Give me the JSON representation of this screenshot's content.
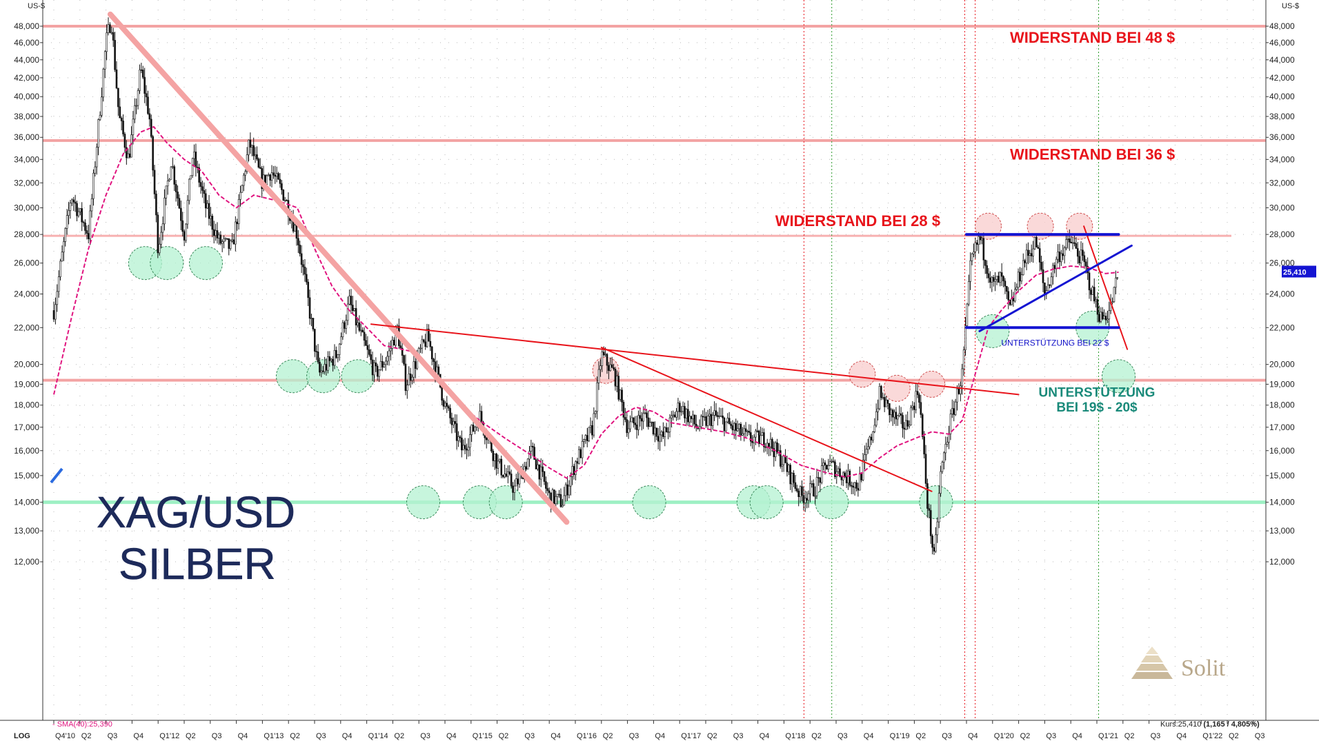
{
  "chart_data": {
    "type": "line",
    "y_unit": "US-$",
    "scale": "LOG",
    "ylim": [
      11500,
      50000
    ],
    "y_ticks": [
      12000,
      13000,
      14000,
      15000,
      16000,
      17000,
      18000,
      19000,
      20000,
      22000,
      24000,
      26000,
      28000,
      30000,
      32000,
      34000,
      36000,
      38000,
      40000,
      42000,
      44000,
      46000,
      48000
    ],
    "y_tick_labels": [
      "12,000",
      "13,000",
      "14,000",
      "15,000",
      "16,000",
      "17,000",
      "18,000",
      "19,000",
      "20,000",
      "22,000",
      "24,000",
      "26,000",
      "28,000",
      "30,000",
      "32,000",
      "34,000",
      "36,000",
      "38,000",
      "40,000",
      "42,000",
      "44,000",
      "46,000",
      "48,000"
    ],
    "x_tick_labels": [
      "Q4'10",
      "Q2",
      "Q3",
      "Q4",
      "Q1'12",
      "Q2",
      "Q3",
      "Q4",
      "Q1'13",
      "Q2",
      "Q3",
      "Q4",
      "Q1'14",
      "Q2",
      "Q3",
      "Q4",
      "Q1'15",
      "Q2",
      "Q3",
      "Q4",
      "Q1'16",
      "Q2",
      "Q3",
      "Q4",
      "Q1'17",
      "Q2",
      "Q3",
      "Q4",
      "Q1'18",
      "Q2",
      "Q3",
      "Q4",
      "Q1'19",
      "Q2",
      "Q3",
      "Q4",
      "Q1'20",
      "Q2",
      "Q3",
      "Q4",
      "Q1'21",
      "Q2",
      "Q3",
      "Q4",
      "Q1'22",
      "Q2",
      "Q3"
    ],
    "series": [
      {
        "name": "",
        "style": "candlestick",
        "color": "#111111",
        "anchors": [
          [
            0,
            23000
          ],
          [
            2,
            31000
          ],
          [
            4,
            28000
          ],
          [
            6,
            46000
          ],
          [
            6.6,
            49000
          ],
          [
            7.5,
            38000
          ],
          [
            8.6,
            34000
          ],
          [
            10,
            43000
          ],
          [
            11,
            38000
          ],
          [
            12,
            27000
          ],
          [
            13.5,
            34000
          ],
          [
            15,
            28000
          ],
          [
            16,
            34500
          ],
          [
            17.5,
            30000
          ],
          [
            19,
            27500
          ],
          [
            20.5,
            27000
          ],
          [
            22.5,
            35500
          ],
          [
            24,
            32000
          ],
          [
            25,
            33000
          ],
          [
            26.5,
            31000
          ],
          [
            28,
            28000
          ],
          [
            29,
            24500
          ],
          [
            30.5,
            19500
          ],
          [
            32.5,
            20500
          ],
          [
            34,
            23500
          ],
          [
            35,
            22000
          ],
          [
            37,
            19500
          ],
          [
            38.5,
            20500
          ],
          [
            39.5,
            22000
          ],
          [
            40.5,
            19000
          ],
          [
            42,
            20500
          ],
          [
            43,
            21500
          ],
          [
            45,
            18000
          ],
          [
            47,
            16000
          ],
          [
            49,
            17500
          ],
          [
            51,
            15500
          ],
          [
            53,
            14500
          ],
          [
            55,
            16000
          ],
          [
            57,
            14200
          ],
          [
            58.5,
            14000
          ],
          [
            60,
            15500
          ],
          [
            62,
            17000
          ],
          [
            63,
            20500
          ],
          [
            64.5,
            19500
          ],
          [
            66,
            17000
          ],
          [
            68,
            17500
          ],
          [
            70,
            16500
          ],
          [
            72,
            18000
          ],
          [
            74,
            17000
          ],
          [
            76,
            17500
          ],
          [
            78,
            17000
          ],
          [
            80,
            16500
          ],
          [
            82,
            16500
          ],
          [
            84,
            15500
          ],
          [
            86,
            14200
          ],
          [
            87.5,
            14500
          ],
          [
            89,
            15500
          ],
          [
            91,
            15000
          ],
          [
            92.5,
            14600
          ],
          [
            94,
            16500
          ],
          [
            95,
            18500
          ],
          [
            96.5,
            17500
          ],
          [
            98,
            17000
          ],
          [
            99.5,
            18800
          ],
          [
            100.5,
            14000
          ],
          [
            101.3,
            12000
          ],
          [
            102,
            15000
          ],
          [
            103,
            17000
          ],
          [
            104.5,
            19500
          ],
          [
            105.5,
            26000
          ],
          [
            106.5,
            27800
          ],
          [
            108,
            24500
          ],
          [
            109,
            25000
          ],
          [
            110,
            23000
          ],
          [
            111.5,
            26000
          ],
          [
            113,
            27500
          ],
          [
            114,
            24000
          ],
          [
            115.5,
            26500
          ],
          [
            117,
            27500
          ],
          [
            118.5,
            26000
          ],
          [
            119.5,
            24000
          ],
          [
            120.5,
            22500
          ],
          [
            121.5,
            23000
          ],
          [
            122.5,
            25410
          ]
        ]
      },
      {
        "name": "SMA(40):25,390",
        "style": "dashed",
        "color": "#e0147f",
        "points": [
          [
            0,
            18500
          ],
          [
            2,
            22500
          ],
          [
            4,
            27000
          ],
          [
            6,
            31000
          ],
          [
            8,
            34500
          ],
          [
            10,
            36500
          ],
          [
            11.5,
            37000
          ],
          [
            13,
            35500
          ],
          [
            15,
            34000
          ],
          [
            17,
            33000
          ],
          [
            19,
            31000
          ],
          [
            21,
            30000
          ],
          [
            23,
            31000
          ],
          [
            26,
            30500
          ],
          [
            28,
            30000
          ],
          [
            30,
            27000
          ],
          [
            32,
            24500
          ],
          [
            34,
            23000
          ],
          [
            36,
            22000
          ],
          [
            38,
            21000
          ],
          [
            41,
            20700
          ],
          [
            43,
            20000
          ],
          [
            46,
            18300
          ],
          [
            49,
            17300
          ],
          [
            52,
            16500
          ],
          [
            55,
            15800
          ],
          [
            57,
            15300
          ],
          [
            59,
            14900
          ],
          [
            61,
            15400
          ],
          [
            63,
            16700
          ],
          [
            65,
            17500
          ],
          [
            67,
            17900
          ],
          [
            69,
            17700
          ],
          [
            71,
            17200
          ],
          [
            74,
            17000
          ],
          [
            77,
            16800
          ],
          [
            80,
            16500
          ],
          [
            83,
            16000
          ],
          [
            86,
            15400
          ],
          [
            89,
            15100
          ],
          [
            91,
            14950
          ],
          [
            93,
            15100
          ],
          [
            95,
            15700
          ],
          [
            97,
            16200
          ],
          [
            99,
            16500
          ],
          [
            101,
            16800
          ],
          [
            103,
            16700
          ],
          [
            104.5,
            17300
          ],
          [
            106,
            19500
          ],
          [
            107.5,
            22000
          ],
          [
            109,
            23000
          ],
          [
            111,
            24200
          ],
          [
            113,
            25200
          ],
          [
            115,
            25600
          ],
          [
            117,
            25800
          ],
          [
            119,
            25700
          ],
          [
            121,
            25300
          ],
          [
            122.5,
            25390
          ]
        ]
      }
    ],
    "horizontal_levels": [
      {
        "value": 48000,
        "color": "#f3a3a3",
        "width": 4
      },
      {
        "value": 35700,
        "color": "#f3a3a3",
        "width": 4
      },
      {
        "value": 27900,
        "color": "#f7b0b0",
        "width": 3
      },
      {
        "value": 19200,
        "color": "#f3a3a3",
        "width": 4
      },
      {
        "value": 14000,
        "color": "#9ef0c4",
        "width": 5
      }
    ],
    "trendlines": [
      {
        "from": [
          6.5,
          49500
        ],
        "to": [
          59,
          13300
        ],
        "color": "#f4a3a3",
        "width": 8
      },
      {
        "from": [
          36.5,
          22200
        ],
        "to": [
          104.5,
          18800
        ],
        "color": "#e8141b",
        "width": 2
      },
      {
        "from": [
          104.5,
          18800
        ],
        "to": [
          111,
          18500
        ],
        "color": "#e8141b",
        "width": 2
      },
      {
        "from": [
          63,
          20900
        ],
        "to": [
          101,
          14400
        ],
        "color": "#e8141b",
        "width": 2
      },
      {
        "from": [
          118.5,
          28600
        ],
        "to": [
          123.5,
          20800
        ],
        "color": "#e8141b",
        "width": 2
      },
      {
        "from": [
          106.5,
          21800
        ],
        "to": [
          124,
          27200
        ],
        "color": "#1414d2",
        "width": 3
      },
      {
        "from": [
          105,
          28000
        ],
        "to": [
          122.5,
          28000
        ],
        "color": "#1414d2",
        "width": 4
      },
      {
        "from": [
          105,
          22000
        ],
        "to": [
          122.5,
          22000
        ],
        "color": "#1414d2",
        "width": 4
      }
    ],
    "vertical_markers": [
      {
        "x": 86.3,
        "color": "#e8141b"
      },
      {
        "x": 89.5,
        "color": "#2a9a2a"
      },
      {
        "x": 104.8,
        "color": "#e8141b"
      },
      {
        "x": 106,
        "color": "#e8141b"
      },
      {
        "x": 120.2,
        "color": "#2a9a2a"
      }
    ],
    "green_circles": [
      [
        10.5,
        26000
      ],
      [
        13,
        26000
      ],
      [
        17.5,
        26000
      ],
      [
        27.5,
        19400
      ],
      [
        31,
        19400
      ],
      [
        35,
        19400
      ],
      [
        42.5,
        14000
      ],
      [
        49,
        14000
      ],
      [
        52,
        14000
      ],
      [
        68.5,
        14000
      ],
      [
        80.5,
        14000
      ],
      [
        82,
        14000
      ],
      [
        89.5,
        14000
      ],
      [
        101.5,
        14000
      ],
      [
        108,
        21800
      ],
      [
        119.5,
        22000
      ],
      [
        122.5,
        19400
      ]
    ],
    "red_circles": [
      [
        63.5,
        19700
      ],
      [
        93,
        19500
      ],
      [
        97,
        18800
      ],
      [
        101,
        19000
      ],
      [
        107.5,
        28600
      ],
      [
        113.5,
        28600
      ],
      [
        118,
        28600
      ]
    ],
    "annotations": [
      {
        "text": "WIDERSTAND BEI 48 $",
        "x": 110,
        "y": 46000
      },
      {
        "text": "WIDERSTAND BEI 36 $",
        "x": 110,
        "y": 34000
      },
      {
        "text": "WIDERSTAND BEI 28 $",
        "x": 83,
        "y": 28600
      },
      {
        "text": "UNTERSTÜTZUNG BEI 22 $",
        "x": 109,
        "y": 21000
      },
      {
        "text": "UNTERSTÜTZUNG",
        "x": 120,
        "y": 18400
      },
      {
        "text": "BEI 19$ - 20$",
        "x": 120,
        "y": 17700
      }
    ],
    "last_price_label": "25,410"
  },
  "texts": {
    "y_unit_left": "US-$",
    "y_unit_right": "US-$",
    "scale_label": "LOG",
    "title_line1": "XAG/USD",
    "title_line2": "SILBER",
    "sma_legend": "- SMA(40):25,390",
    "kurs_prefix": "Kurs:25,410 ",
    "kurs_bold": "(1,165 / 4,805%)",
    "logo": "Solit"
  },
  "colors": {
    "candle": "#111111",
    "sma": "#e0147f",
    "resistance": "#e8141b",
    "support_text": "#1a8a7a",
    "channel": "#1414d2",
    "price_box": "#1414d2"
  }
}
